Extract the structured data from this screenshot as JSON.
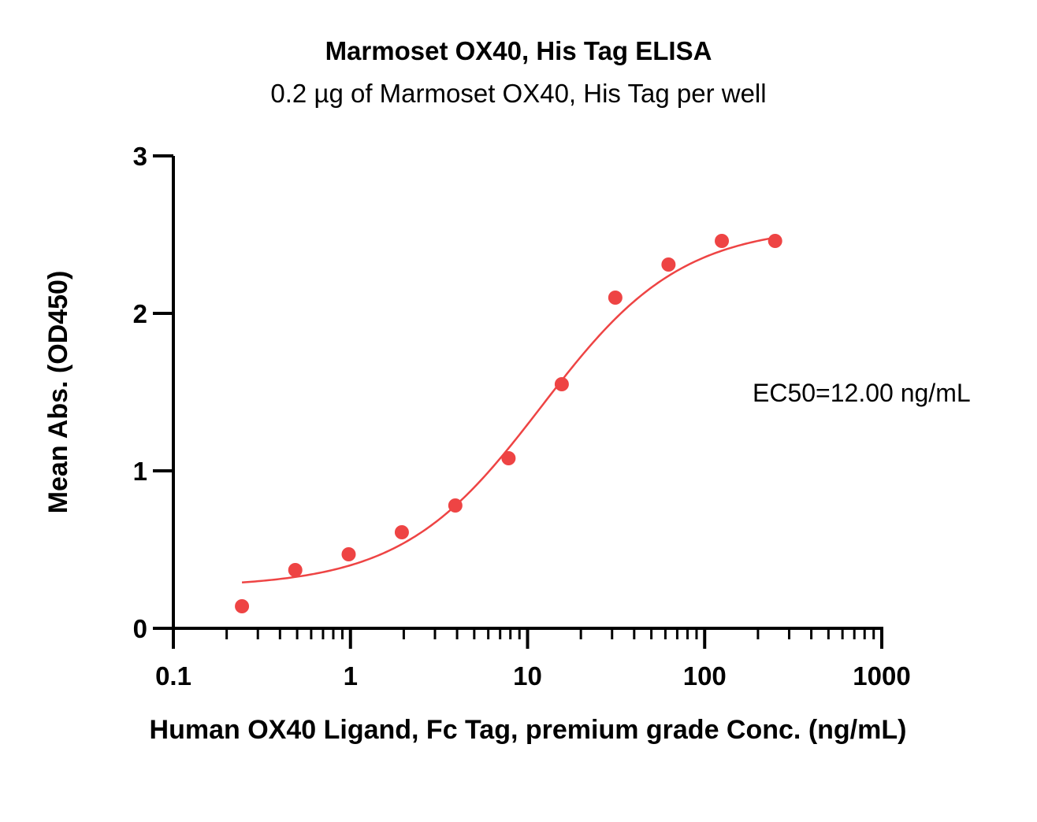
{
  "chart_data": {
    "type": "scatter",
    "title": "Marmoset OX40, His Tag ELISA",
    "subtitle": "0.2 µg of Marmoset OX40, His Tag per well",
    "xlabel": "Human OX40 Ligand, Fc Tag, premium grade Conc. (ng/mL)",
    "ylabel": "Mean Abs. (OD450)",
    "xscale": "log",
    "xlim": [
      0.1,
      1000
    ],
    "ylim": [
      0,
      3
    ],
    "xticks": [
      "0.1",
      "1",
      "10",
      "100",
      "1000"
    ],
    "yticks": [
      "0",
      "1",
      "2",
      "3"
    ],
    "annotation": "EC50=12.00 ng/mL",
    "grid": false,
    "color": "#ee4444",
    "points": {
      "x": [
        0.244,
        0.488,
        0.977,
        1.95,
        3.91,
        7.81,
        15.6,
        31.3,
        62.5,
        125,
        250
      ],
      "y": [
        0.14,
        0.37,
        0.47,
        0.61,
        0.78,
        1.08,
        1.55,
        2.1,
        2.31,
        2.46,
        2.46
      ]
    },
    "fit_curve": {
      "model": "4PL",
      "bottom": 0.26,
      "top": 2.56,
      "ec50": 12.0,
      "hill": 1.1,
      "x_range": [
        0.244,
        250
      ]
    }
  }
}
